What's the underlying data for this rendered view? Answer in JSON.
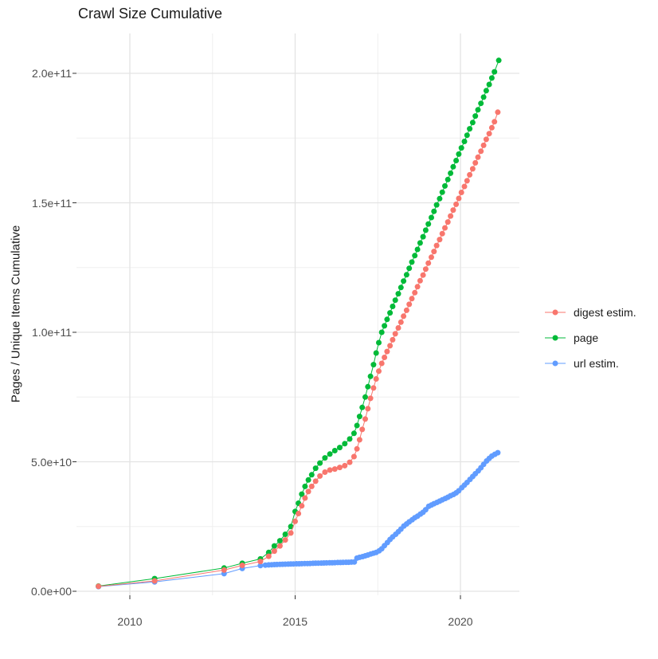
{
  "title": "Crawl Size Cumulative",
  "y_axis": {
    "label": "Pages / Unique Items Cumulative",
    "ticks": [
      "0.0e+00",
      "5.0e+10",
      "1.0e+11",
      "1.5e+11",
      "2.0e+11"
    ],
    "tick_values": [
      0,
      50,
      100,
      150,
      200
    ]
  },
  "x_axis": {
    "ticks": [
      "2010",
      "2015",
      "2020"
    ],
    "tick_values": [
      2010,
      2015,
      2020
    ]
  },
  "legend": {
    "items": [
      {
        "label": "digest estim.",
        "color": "#F8766D"
      },
      {
        "label": "page",
        "color": "#00BA38"
      },
      {
        "label": "url estim.",
        "color": "#619CFF"
      }
    ]
  },
  "style": {
    "background": "#ffffff",
    "grid_major": "#e3e3e3",
    "grid_minor": "#efefef",
    "tick_color": "#333333",
    "axis_text": "#4d4d4d"
  },
  "chart_data": {
    "type": "scatter",
    "title": "Crawl Size Cumulative",
    "xlabel": "",
    "ylabel": "Pages / Unique Items Cumulative",
    "x_range": [
      2008.4,
      2021.8
    ],
    "y_range_e9": [
      -3,
      216
    ],
    "grid": "on",
    "legend_position": "right",
    "value_unit": 1000000000,
    "draw_order": [
      2,
      1,
      0
    ],
    "series": [
      {
        "name": "digest estim.",
        "color": "#F8766D",
        "points_year_e9": [
          [
            2009.05,
            1.9
          ],
          [
            2010.75,
            4.0
          ],
          [
            2012.85,
            8.2
          ],
          [
            2013.4,
            10.0
          ],
          [
            2013.95,
            11.5
          ],
          [
            2014.2,
            13.5
          ],
          [
            2014.37,
            15.5
          ],
          [
            2014.54,
            17.5
          ],
          [
            2014.7,
            19.8
          ],
          [
            2014.87,
            22.5
          ],
          [
            2015.0,
            27
          ],
          [
            2015.1,
            30
          ],
          [
            2015.2,
            33
          ],
          [
            2015.3,
            36
          ],
          [
            2015.4,
            38.5
          ],
          [
            2015.5,
            40.5
          ],
          [
            2015.62,
            42.5
          ],
          [
            2015.75,
            44.5
          ],
          [
            2015.9,
            46
          ],
          [
            2016.05,
            46.8
          ],
          [
            2016.2,
            47.2
          ],
          [
            2016.35,
            47.8
          ],
          [
            2016.5,
            48.5
          ],
          [
            2016.65,
            49.8
          ],
          [
            2016.78,
            52
          ],
          [
            2016.87,
            55
          ],
          [
            2016.95,
            58.5
          ],
          [
            2017.03,
            62.5
          ],
          [
            2017.12,
            66.5
          ],
          [
            2017.2,
            70.5
          ],
          [
            2017.28,
            74.5
          ],
          [
            2017.37,
            78.5
          ],
          [
            2017.45,
            82
          ],
          [
            2017.53,
            85
          ],
          [
            2017.62,
            88
          ],
          [
            2017.7,
            90.3
          ],
          [
            2017.78,
            92.6
          ],
          [
            2017.87,
            94.8
          ],
          [
            2017.95,
            97.1
          ],
          [
            2018.03,
            99.4
          ],
          [
            2018.12,
            101.7
          ],
          [
            2018.2,
            103.9
          ],
          [
            2018.28,
            106.2
          ],
          [
            2018.37,
            108.5
          ],
          [
            2018.45,
            110.8
          ],
          [
            2018.53,
            113
          ],
          [
            2018.62,
            115.3
          ],
          [
            2018.7,
            117.6
          ],
          [
            2018.78,
            119.9
          ],
          [
            2018.87,
            122.1
          ],
          [
            2018.95,
            124.4
          ],
          [
            2019.03,
            126.7
          ],
          [
            2019.12,
            129
          ],
          [
            2019.2,
            131.2
          ],
          [
            2019.28,
            133.5
          ],
          [
            2019.37,
            135.8
          ],
          [
            2019.45,
            138.1
          ],
          [
            2019.53,
            140.3
          ],
          [
            2019.62,
            142.6
          ],
          [
            2019.7,
            144.9
          ],
          [
            2019.78,
            147.2
          ],
          [
            2019.87,
            149.4
          ],
          [
            2019.95,
            151.7
          ],
          [
            2020.03,
            154
          ],
          [
            2020.12,
            156.3
          ],
          [
            2020.2,
            158.5
          ],
          [
            2020.28,
            160.8
          ],
          [
            2020.37,
            163.1
          ],
          [
            2020.45,
            165.4
          ],
          [
            2020.53,
            167.6
          ],
          [
            2020.62,
            169.9
          ],
          [
            2020.7,
            172.2
          ],
          [
            2020.78,
            174.5
          ],
          [
            2020.87,
            176.7
          ],
          [
            2020.95,
            179
          ],
          [
            2021.03,
            181.3
          ],
          [
            2021.13,
            185
          ]
        ]
      },
      {
        "name": "page",
        "color": "#00BA38",
        "points_year_e9": [
          [
            2009.05,
            2.0
          ],
          [
            2010.75,
            4.9
          ],
          [
            2012.85,
            9.0
          ],
          [
            2013.4,
            10.8
          ],
          [
            2013.95,
            12.5
          ],
          [
            2014.2,
            15
          ],
          [
            2014.37,
            17.5
          ],
          [
            2014.54,
            19.5
          ],
          [
            2014.7,
            22
          ],
          [
            2014.87,
            25
          ],
          [
            2015.0,
            30.8
          ],
          [
            2015.1,
            34
          ],
          [
            2015.2,
            37.5
          ],
          [
            2015.3,
            40.5
          ],
          [
            2015.4,
            43
          ],
          [
            2015.5,
            45
          ],
          [
            2015.62,
            47.5
          ],
          [
            2015.75,
            49.5
          ],
          [
            2015.9,
            51.5
          ],
          [
            2016.05,
            53
          ],
          [
            2016.2,
            54.3
          ],
          [
            2016.35,
            55.5
          ],
          [
            2016.5,
            57
          ],
          [
            2016.65,
            58.8
          ],
          [
            2016.78,
            61
          ],
          [
            2016.87,
            64
          ],
          [
            2016.95,
            67.5
          ],
          [
            2017.03,
            71
          ],
          [
            2017.12,
            75
          ],
          [
            2017.2,
            79
          ],
          [
            2017.28,
            83
          ],
          [
            2017.37,
            87.5
          ],
          [
            2017.45,
            92
          ],
          [
            2017.53,
            96
          ],
          [
            2017.62,
            100
          ],
          [
            2017.7,
            102.5
          ],
          [
            2017.78,
            105
          ],
          [
            2017.87,
            107.5
          ],
          [
            2017.95,
            110
          ],
          [
            2018.03,
            112.4
          ],
          [
            2018.12,
            114.9
          ],
          [
            2018.2,
            117.3
          ],
          [
            2018.28,
            119.8
          ],
          [
            2018.37,
            122.2
          ],
          [
            2018.45,
            124.7
          ],
          [
            2018.53,
            127.1
          ],
          [
            2018.62,
            129.6
          ],
          [
            2018.7,
            132
          ],
          [
            2018.78,
            134.5
          ],
          [
            2018.87,
            136.9
          ],
          [
            2018.95,
            139.4
          ],
          [
            2019.03,
            141.8
          ],
          [
            2019.12,
            144.3
          ],
          [
            2019.2,
            146.7
          ],
          [
            2019.28,
            149.2
          ],
          [
            2019.37,
            151.6
          ],
          [
            2019.45,
            154.1
          ],
          [
            2019.53,
            156.5
          ],
          [
            2019.62,
            159
          ],
          [
            2019.7,
            161.4
          ],
          [
            2019.78,
            163.9
          ],
          [
            2019.87,
            166.3
          ],
          [
            2019.95,
            168.8
          ],
          [
            2020.03,
            171.2
          ],
          [
            2020.12,
            173.7
          ],
          [
            2020.2,
            176.1
          ],
          [
            2020.28,
            178.6
          ],
          [
            2020.37,
            181
          ],
          [
            2020.45,
            183.5
          ],
          [
            2020.53,
            185.9
          ],
          [
            2020.62,
            188.4
          ],
          [
            2020.7,
            190.8
          ],
          [
            2020.78,
            193.3
          ],
          [
            2020.87,
            195.7
          ],
          [
            2020.95,
            198.2
          ],
          [
            2021.03,
            200.6
          ],
          [
            2021.16,
            205
          ]
        ]
      },
      {
        "name": "url estim.",
        "color": "#619CFF",
        "points_year_e9": [
          [
            2009.05,
            1.8
          ],
          [
            2010.75,
            3.6
          ],
          [
            2012.85,
            6.8
          ],
          [
            2013.4,
            8.8
          ],
          [
            2013.95,
            9.9
          ],
          [
            2014.1,
            10.1
          ],
          [
            2014.2,
            10.2
          ],
          [
            2014.29,
            10.25
          ],
          [
            2014.37,
            10.3
          ],
          [
            2014.45,
            10.35
          ],
          [
            2014.54,
            10.4
          ],
          [
            2014.62,
            10.42
          ],
          [
            2014.7,
            10.45
          ],
          [
            2014.79,
            10.5
          ],
          [
            2014.87,
            10.52
          ],
          [
            2014.95,
            10.55
          ],
          [
            2015.04,
            10.6
          ],
          [
            2015.12,
            10.62
          ],
          [
            2015.2,
            10.65
          ],
          [
            2015.29,
            10.7
          ],
          [
            2015.37,
            10.72
          ],
          [
            2015.45,
            10.75
          ],
          [
            2015.54,
            10.8
          ],
          [
            2015.62,
            10.82
          ],
          [
            2015.7,
            10.85
          ],
          [
            2015.79,
            10.9
          ],
          [
            2015.87,
            10.92
          ],
          [
            2015.95,
            10.95
          ],
          [
            2016.04,
            11
          ],
          [
            2016.12,
            11
          ],
          [
            2016.2,
            11.05
          ],
          [
            2016.29,
            11.1
          ],
          [
            2016.37,
            11.1
          ],
          [
            2016.45,
            11.15
          ],
          [
            2016.54,
            11.2
          ],
          [
            2016.62,
            11.2
          ],
          [
            2016.7,
            11.25
          ],
          [
            2016.79,
            11.3
          ],
          [
            2016.87,
            12.8
          ],
          [
            2016.95,
            13.1
          ],
          [
            2017.04,
            13.4
          ],
          [
            2017.12,
            13.7
          ],
          [
            2017.2,
            14
          ],
          [
            2017.29,
            14.4
          ],
          [
            2017.37,
            14.7
          ],
          [
            2017.45,
            15
          ],
          [
            2017.54,
            15.6
          ],
          [
            2017.62,
            16.4
          ],
          [
            2017.7,
            17.6
          ],
          [
            2017.79,
            18.8
          ],
          [
            2017.87,
            20
          ],
          [
            2017.95,
            21
          ],
          [
            2018.04,
            22
          ],
          [
            2018.12,
            23
          ],
          [
            2018.2,
            24
          ],
          [
            2018.29,
            25.2
          ],
          [
            2018.37,
            26
          ],
          [
            2018.45,
            26.8
          ],
          [
            2018.54,
            27.6
          ],
          [
            2018.62,
            28.4
          ],
          [
            2018.7,
            29
          ],
          [
            2018.79,
            29.8
          ],
          [
            2018.87,
            30.5
          ],
          [
            2018.95,
            31.5
          ],
          [
            2019.04,
            32.8
          ],
          [
            2019.12,
            33.3
          ],
          [
            2019.2,
            33.8
          ],
          [
            2019.29,
            34.3
          ],
          [
            2019.37,
            34.8
          ],
          [
            2019.45,
            35.3
          ],
          [
            2019.54,
            35.8
          ],
          [
            2019.62,
            36.3
          ],
          [
            2019.7,
            36.9
          ],
          [
            2019.79,
            37.4
          ],
          [
            2019.87,
            38
          ],
          [
            2019.95,
            38.8
          ],
          [
            2020.04,
            40
          ],
          [
            2020.12,
            41
          ],
          [
            2020.2,
            42
          ],
          [
            2020.29,
            43.2
          ],
          [
            2020.37,
            44.3
          ],
          [
            2020.45,
            45.4
          ],
          [
            2020.54,
            46.5
          ],
          [
            2020.62,
            47.7
          ],
          [
            2020.7,
            49
          ],
          [
            2020.79,
            50.3
          ],
          [
            2020.87,
            51.3
          ],
          [
            2020.95,
            52.2
          ],
          [
            2021.04,
            52.9
          ],
          [
            2021.13,
            53.5
          ]
        ]
      }
    ]
  }
}
